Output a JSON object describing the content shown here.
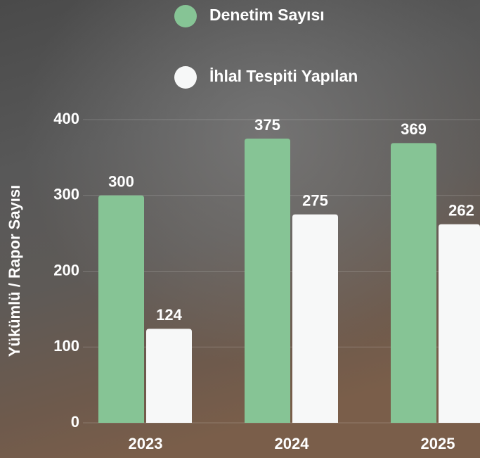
{
  "chart_data": {
    "type": "bar",
    "y_label": "Yükümlü / Rapor Sayısı",
    "categories": [
      "2023",
      "2024",
      "2025"
    ],
    "series": [
      {
        "name": "Denetim Sayısı",
        "color": "#86c495",
        "values": [
          300,
          375,
          369
        ]
      },
      {
        "name": "İhlal Tespiti Yapılan",
        "color": "#f7f8f8",
        "values": [
          124,
          275,
          262
        ]
      }
    ],
    "ylim": [
      0,
      400
    ],
    "yticks": [
      0,
      100,
      200,
      300,
      400
    ],
    "grid": true
  }
}
